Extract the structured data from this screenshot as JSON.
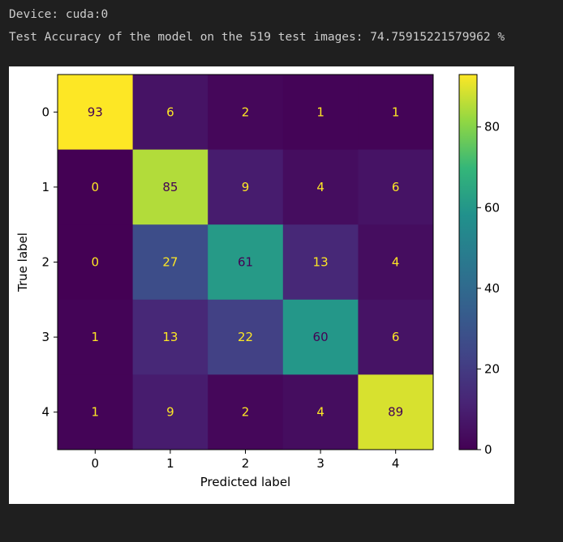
{
  "output": {
    "device_line": "Device: cuda:0",
    "accuracy_line": "Test Accuracy of the model on the 519 test images: 74.75915221579962 %"
  },
  "chart_data": {
    "type": "heatmap",
    "xlabel": "Predicted label",
    "ylabel": "True label",
    "x_ticks": [
      "0",
      "1",
      "2",
      "3",
      "4"
    ],
    "y_ticks": [
      "0",
      "1",
      "2",
      "3",
      "4"
    ],
    "matrix": [
      [
        93,
        6,
        2,
        1,
        1
      ],
      [
        0,
        85,
        9,
        4,
        6
      ],
      [
        0,
        27,
        61,
        13,
        4
      ],
      [
        1,
        13,
        22,
        60,
        6
      ],
      [
        1,
        9,
        2,
        4,
        89
      ]
    ],
    "colormap": "viridis",
    "colorbar": {
      "ticks": [
        0,
        20,
        40,
        60,
        80
      ],
      "vmin": 0,
      "vmax": 93
    }
  }
}
